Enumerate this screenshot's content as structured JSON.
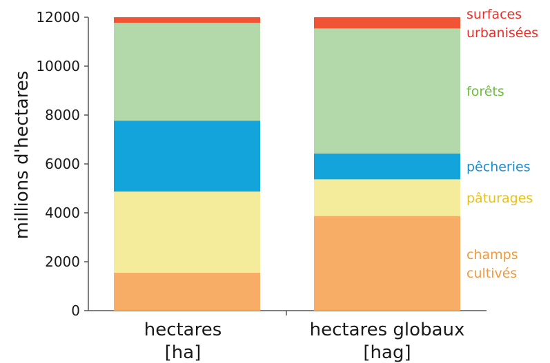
{
  "chart_data": {
    "type": "bar",
    "stacked": true,
    "ylabel": "millions d'hectares",
    "xlabel": "",
    "ylim": [
      0,
      12000
    ],
    "yticks": [
      0,
      2000,
      4000,
      6000,
      8000,
      10000,
      12000
    ],
    "grid": false,
    "categories": [
      {
        "line1": "hectares",
        "line2": "[ha]"
      },
      {
        "line1": "hectares globaux",
        "line2": "[hag]"
      }
    ],
    "series": [
      {
        "name": "champs cultivés",
        "label_lines": [
          "champs",
          "cultivés"
        ],
        "color": "#f8ad67",
        "label_color": "#f29a3a",
        "values": [
          1550,
          3870
        ]
      },
      {
        "name": "pâturages",
        "label_lines": [
          "pâturages"
        ],
        "color": "#f4ec9a",
        "label_color": "#e8c21b",
        "values": [
          3320,
          1500
        ]
      },
      {
        "name": "pêcheries",
        "label_lines": [
          "pêcheries"
        ],
        "color": "#14a4dc",
        "label_color": "#1a8fd0",
        "values": [
          2900,
          1060
        ]
      },
      {
        "name": "forêts",
        "label_lines": [
          "forêts"
        ],
        "color": "#b3d8aa",
        "label_color": "#6cbf3c",
        "values": [
          4000,
          5110
        ]
      },
      {
        "name": "surfaces urbanisées",
        "label_lines": [
          "surfaces",
          "urbanisées"
        ],
        "color": "#f05434",
        "label_color": "#e8302a",
        "values": [
          230,
          460
        ]
      }
    ]
  }
}
